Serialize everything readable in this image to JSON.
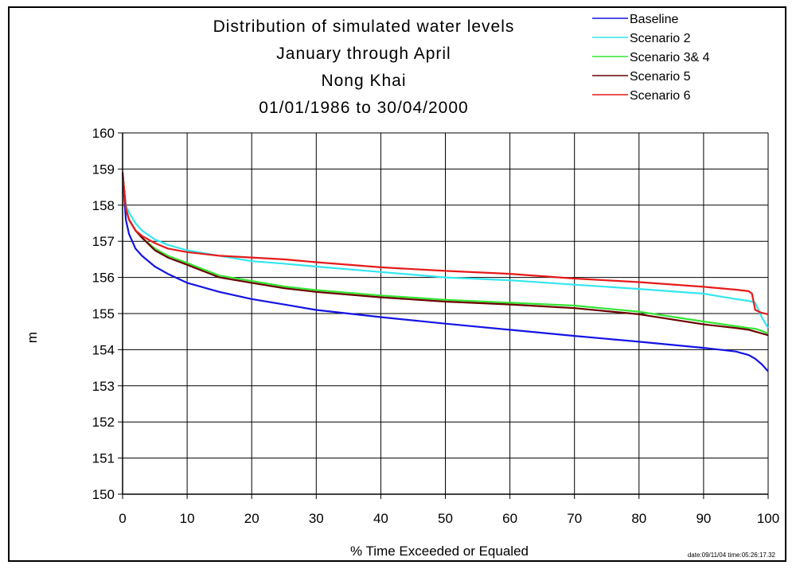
{
  "chart_data": {
    "type": "line",
    "title": [
      "Distribution of simulated water levels",
      "January through April",
      "Nong Khai",
      "01/01/1986 to 30/04/2000"
    ],
    "xlabel": "% Time Exceeded or Equaled",
    "ylabel": "m",
    "xlim": [
      0,
      100
    ],
    "ylim": [
      150,
      160
    ],
    "xticks": [
      "0",
      "10",
      "20",
      "30",
      "40",
      "50",
      "60",
      "70",
      "80",
      "90",
      "100"
    ],
    "yticks": [
      "150",
      "151",
      "152",
      "153",
      "154",
      "155",
      "156",
      "157",
      "158",
      "159",
      "160"
    ],
    "grid": true,
    "legend_position": "top-right",
    "series": [
      {
        "name": "Baseline",
        "color": "#1414e6",
        "x": [
          0,
          0.5,
          1,
          2,
          3,
          5,
          7,
          10,
          15,
          20,
          25,
          30,
          40,
          50,
          60,
          70,
          80,
          90,
          95,
          97,
          98,
          99,
          100
        ],
        "y": [
          158.9,
          157.6,
          157.2,
          156.8,
          156.6,
          156.3,
          156.1,
          155.85,
          155.6,
          155.4,
          155.25,
          155.1,
          154.9,
          154.72,
          154.55,
          154.38,
          154.22,
          154.05,
          153.95,
          153.85,
          153.75,
          153.6,
          153.4
        ]
      },
      {
        "name": "Scenario 2",
        "color": "#33e6f0",
        "x": [
          0,
          0.5,
          1,
          2,
          3,
          5,
          7,
          10,
          15,
          20,
          25,
          30,
          40,
          50,
          60,
          70,
          80,
          90,
          95,
          97,
          98,
          99,
          100
        ],
        "y": [
          158.9,
          158.0,
          157.8,
          157.5,
          157.3,
          157.05,
          156.9,
          156.75,
          156.6,
          156.45,
          156.38,
          156.3,
          156.15,
          156.0,
          155.92,
          155.8,
          155.68,
          155.55,
          155.4,
          155.35,
          155.3,
          154.9,
          154.6
        ]
      },
      {
        "name": "Scenario 3& 4",
        "color": "#33e633",
        "x": [
          0,
          0.5,
          1,
          2,
          3,
          5,
          7,
          10,
          15,
          20,
          25,
          30,
          40,
          50,
          60,
          70,
          80,
          90,
          95,
          97,
          98,
          99,
          100
        ],
        "y": [
          158.9,
          157.9,
          157.6,
          157.3,
          157.1,
          156.8,
          156.6,
          156.4,
          156.05,
          155.9,
          155.75,
          155.65,
          155.5,
          155.38,
          155.3,
          155.22,
          155.05,
          154.78,
          154.65,
          154.6,
          154.58,
          154.52,
          154.45
        ]
      },
      {
        "name": "Scenario 5",
        "color": "#6b0000",
        "x": [
          0,
          0.5,
          1,
          2,
          3,
          5,
          7,
          10,
          15,
          20,
          25,
          30,
          40,
          50,
          60,
          70,
          80,
          90,
          95,
          97,
          98,
          99,
          100
        ],
        "y": [
          158.9,
          157.9,
          157.6,
          157.3,
          157.1,
          156.75,
          156.55,
          156.35,
          156.0,
          155.85,
          155.7,
          155.6,
          155.45,
          155.33,
          155.25,
          155.15,
          154.98,
          154.7,
          154.6,
          154.55,
          154.5,
          154.45,
          154.4
        ]
      },
      {
        "name": "Scenario 6",
        "color": "#e61a1a",
        "x": [
          0,
          0.5,
          1,
          2,
          3,
          5,
          7,
          10,
          15,
          20,
          25,
          30,
          40,
          50,
          60,
          70,
          80,
          90,
          95,
          97,
          97.5,
          98,
          99,
          100
        ],
        "y": [
          158.9,
          157.9,
          157.6,
          157.3,
          157.15,
          156.95,
          156.8,
          156.7,
          156.6,
          156.55,
          156.5,
          156.42,
          156.28,
          156.18,
          156.1,
          155.97,
          155.87,
          155.74,
          155.66,
          155.62,
          155.55,
          155.1,
          155.02,
          154.98
        ]
      }
    ],
    "footer_stamp": "date:09/11/04 time:05:26:17.32"
  }
}
